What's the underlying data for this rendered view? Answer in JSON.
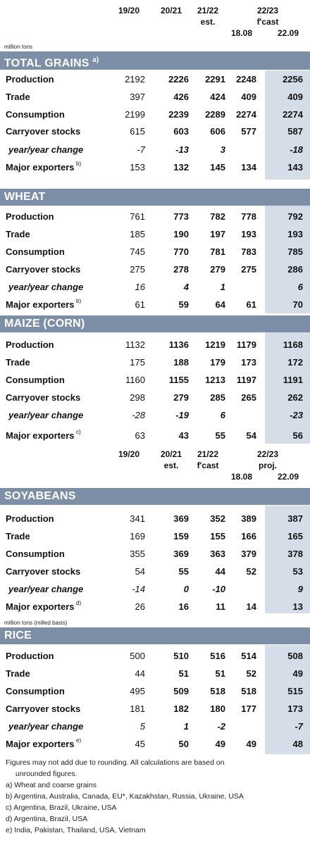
{
  "header1": {
    "c1": "19/20",
    "c2": "20/21",
    "c3": "21/22",
    "c3_sub": "est.",
    "c45": "22/23",
    "c45_sub": "f'cast",
    "c4_date": "18.08",
    "c5_date": "22.09",
    "unit": "million tons"
  },
  "header2": {
    "c1": "19/20",
    "c2": "20/21",
    "c2_sub": "est.",
    "c3": "21/22",
    "c3_sub": "f'cast",
    "c45": "22/23",
    "c45_sub": "proj.",
    "c4_date": "18.08",
    "c5_date": "22.09"
  },
  "rice_unit": "million tons (milled basis)",
  "sections": [
    {
      "title": "TOTAL GRAINS",
      "sup": "a)",
      "rows": [
        {
          "label": "Production",
          "values": [
            "2192",
            "2226",
            "2291",
            "2248",
            "2256"
          ],
          "italic": false
        },
        {
          "label": "Trade",
          "values": [
            "397",
            "426",
            "424",
            "409",
            "409"
          ],
          "italic": false
        },
        {
          "label": "Consumption",
          "values": [
            "2199",
            "2239",
            "2289",
            "2274",
            "2274"
          ],
          "italic": false
        },
        {
          "label": "Carryover stocks",
          "values": [
            "615",
            "603",
            "606",
            "577",
            "587"
          ],
          "italic": false
        },
        {
          "label": "year/year change",
          "values": [
            "-7",
            "-13",
            "3",
            "",
            "-18"
          ],
          "italic": true
        },
        {
          "label": "Major exporters",
          "sup": "b)",
          "values": [
            "153",
            "132",
            "145",
            "134",
            "143"
          ],
          "italic": false
        }
      ]
    },
    {
      "title": "WHEAT",
      "sup": "",
      "rows": [
        {
          "label": "Production",
          "values": [
            "761",
            "773",
            "782",
            "778",
            "792"
          ],
          "italic": false
        },
        {
          "label": "Trade",
          "values": [
            "185",
            "190",
            "197",
            "193",
            "193"
          ],
          "italic": false
        },
        {
          "label": "Consumption",
          "values": [
            "745",
            "770",
            "781",
            "783",
            "785"
          ],
          "italic": false
        },
        {
          "label": "Carryover stocks",
          "values": [
            "275",
            "278",
            "279",
            "275",
            "286"
          ],
          "italic": false
        },
        {
          "label": "year/year change",
          "values": [
            "16",
            "4",
            "1",
            "",
            "6"
          ],
          "italic": true
        },
        {
          "label": "Major exporters",
          "sup": "b)",
          "values": [
            "61",
            "59",
            "64",
            "61",
            "70"
          ],
          "italic": false
        }
      ]
    },
    {
      "title": "MAIZE (CORN)",
      "sup": "",
      "rows": [
        {
          "label": "Production",
          "values": [
            "1132",
            "1136",
            "1219",
            "1179",
            "1168"
          ],
          "italic": false
        },
        {
          "label": "Trade",
          "values": [
            "175",
            "188",
            "179",
            "173",
            "172"
          ],
          "italic": false
        },
        {
          "label": "Consumption",
          "values": [
            "1160",
            "1155",
            "1213",
            "1197",
            "1191"
          ],
          "italic": false
        },
        {
          "label": "Carryover stocks",
          "values": [
            "298",
            "279",
            "285",
            "265",
            "262"
          ],
          "italic": false
        },
        {
          "label": "year/year change",
          "values": [
            "-28",
            "-19",
            "6",
            "",
            "-23"
          ],
          "italic": true
        },
        {
          "label": "Major exporters",
          "sup": "c)",
          "values": [
            "63",
            "43",
            "55",
            "54",
            "56"
          ],
          "italic": false
        }
      ]
    },
    {
      "title": "SOYABEANS",
      "sup": "",
      "rows": [
        {
          "label": "Production",
          "values": [
            "341",
            "369",
            "352",
            "389",
            "387"
          ],
          "italic": false
        },
        {
          "label": "Trade",
          "values": [
            "169",
            "159",
            "155",
            "166",
            "165"
          ],
          "italic": false
        },
        {
          "label": "Consumption",
          "values": [
            "355",
            "369",
            "363",
            "379",
            "378"
          ],
          "italic": false
        },
        {
          "label": "Carryover stocks",
          "values": [
            "54",
            "55",
            "44",
            "52",
            "53"
          ],
          "italic": false
        },
        {
          "label": "year/year change",
          "values": [
            "-14",
            "0",
            "-10",
            "",
            "9"
          ],
          "italic": true
        },
        {
          "label": "Major exporters",
          "sup": "d)",
          "values": [
            "26",
            "16",
            "11",
            "14",
            "13"
          ],
          "italic": false
        }
      ]
    },
    {
      "title": "RICE",
      "sup": "",
      "rows": [
        {
          "label": "Production",
          "values": [
            "500",
            "510",
            "516",
            "514",
            "508"
          ],
          "italic": false
        },
        {
          "label": "Trade",
          "values": [
            "44",
            "51",
            "51",
            "52",
            "49"
          ],
          "italic": false
        },
        {
          "label": "Consumption",
          "values": [
            "495",
            "509",
            "518",
            "518",
            "515"
          ],
          "italic": false
        },
        {
          "label": "Carryover stocks",
          "values": [
            "181",
            "182",
            "180",
            "177",
            "173"
          ],
          "italic": false
        },
        {
          "label": "year/year change",
          "values": [
            "5",
            "1",
            "-2",
            "",
            "-7"
          ],
          "italic": true
        },
        {
          "label": "Major exporters",
          "sup": "e)",
          "values": [
            "45",
            "50",
            "49",
            "49",
            "48"
          ],
          "italic": false
        }
      ]
    }
  ],
  "footnotes": {
    "line1": "Figures may not add due to rounding. All calculations are based on",
    "line2": "unrounded figures.",
    "a": "a) Wheat and coarse grains",
    "b": "b) Argentina, Australia, Canada, EU*, Kazakhstan, Russia, Ukraine, USA",
    "c": "c) Argentina, Brazil, Ukraine, USA",
    "d": "d) Argentina, Brazil, USA",
    "e": "e) India, Pakistan, Thailand, USA, Vietnam"
  }
}
